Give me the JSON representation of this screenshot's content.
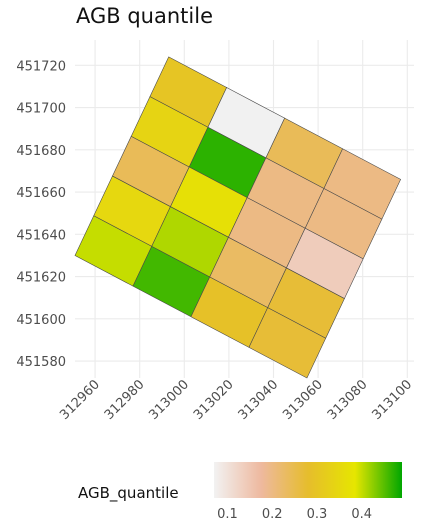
{
  "title": "AGB quantile",
  "chart_data": {
    "type": "heatmap",
    "title": "AGB quantile",
    "xlabel": "",
    "ylabel": "",
    "x_ticks": [
      "312960",
      "312980",
      "313000",
      "313020",
      "313040",
      "313060",
      "313080",
      "313100"
    ],
    "y_ticks": [
      "451720",
      "451700",
      "451680",
      "451660",
      "451640",
      "451620",
      "451600",
      "451580"
    ],
    "xlim": [
      312951,
      313103
    ],
    "ylim": [
      451572,
      451732
    ],
    "grid": true,
    "grid_rows": 5,
    "grid_cols": 4,
    "corner_top": [
      312993,
      451724
    ],
    "corner_right": [
      313097,
      451666
    ],
    "corner_left": [
      312951,
      451630
    ],
    "values": [
      [
        0.3,
        null,
        0.24,
        0.2
      ],
      [
        0.34,
        0.47,
        0.2,
        0.2
      ],
      [
        0.24,
        0.37,
        0.2,
        0.14
      ],
      [
        0.35,
        0.41,
        0.23,
        0.27
      ],
      [
        0.4,
        0.46,
        0.29,
        0.27
      ]
    ],
    "legend": {
      "title": "AGB_quantile",
      "min": 0.07,
      "max": 0.49,
      "ticks": [
        "0.1",
        "0.2",
        "0.3",
        "0.4"
      ],
      "tick_values": [
        0.1,
        0.2,
        0.3,
        0.4
      ],
      "colors": [
        "#f2f2f2",
        "#eeb99f",
        "#e6bd2c",
        "#e6e600",
        "#00a600"
      ]
    },
    "na_color": "#f1f1f1"
  }
}
